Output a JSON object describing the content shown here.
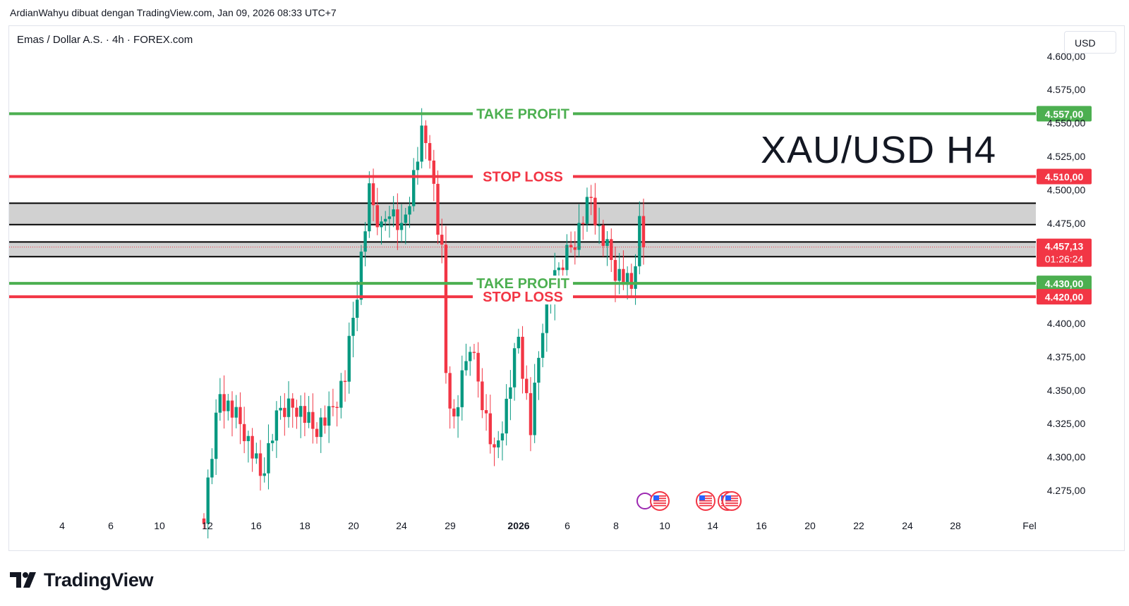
{
  "header": {
    "text": "ArdianWahyu dibuat dengan TradingView.com, Jan 09, 2026 08:33 UTC+7"
  },
  "symbol": {
    "text": "Emas / Dollar A.S. · 4h · FOREX.com"
  },
  "currency_button": {
    "label": "USD"
  },
  "overlay_title": "XAU/USD H4",
  "brand": {
    "name": "TradingView"
  },
  "colors": {
    "up": "#089981",
    "down": "#f23645",
    "take_profit": "#4caf50",
    "stop_loss": "#f23645",
    "zone_fill": "#d1d1d1",
    "zone_border": "#000000",
    "grid": "#e0e3eb",
    "text": "#131722"
  },
  "chart_data": {
    "type": "candlestick",
    "timeframe": "4h",
    "ylim": [
      4255,
      4615
    ],
    "y_ticks": [
      "4.275,00",
      "4.300,00",
      "4.325,00",
      "4.350,00",
      "4.375,00",
      "4.400,00",
      "4.475,00",
      "4.500,00",
      "4.525,00",
      "4.550,00",
      "4.575,00",
      "4.600,00"
    ],
    "x_ticks": [
      "4",
      "6",
      "10",
      "12",
      "16",
      "18",
      "20",
      "24",
      "29",
      "2026",
      "6",
      "8",
      "10",
      "14",
      "16",
      "20",
      "22",
      "24",
      "28",
      "Fel"
    ],
    "levels": [
      {
        "label": "TAKE PROFIT",
        "price": 4557,
        "price_label": "4.557,00",
        "kind": "take_profit"
      },
      {
        "label": "STOP LOSS",
        "price": 4510,
        "price_label": "4.510,00",
        "kind": "stop_loss"
      },
      {
        "label": "TAKE PROFIT",
        "price": 4430,
        "price_label": "4.430,00",
        "kind": "take_profit"
      },
      {
        "label": "STOP LOSS",
        "price": 4420,
        "price_label": "4.420,00",
        "kind": "stop_loss"
      }
    ],
    "zones": [
      {
        "from": 4474,
        "to": 4490
      },
      {
        "from": 4450,
        "to": 4461
      }
    ],
    "last_price": {
      "price": 4457.13,
      "label": "4.457,13",
      "countdown": "01:26:24"
    },
    "anchors": [
      {
        "price": 4260,
        "index": 0
      },
      {
        "price": 4348,
        "index": 4
      },
      {
        "price": 4320,
        "index": 10
      },
      {
        "price": 4285,
        "index": 14
      },
      {
        "price": 4335,
        "index": 19
      },
      {
        "price": 4340,
        "index": 23
      },
      {
        "price": 4322,
        "index": 27
      },
      {
        "price": 4330,
        "index": 31
      },
      {
        "price": 4360,
        "index": 35
      },
      {
        "price": 4425,
        "index": 38
      },
      {
        "price": 4495,
        "index": 41
      },
      {
        "price": 4470,
        "index": 44
      },
      {
        "price": 4490,
        "index": 46
      },
      {
        "price": 4468,
        "index": 49
      },
      {
        "price": 4540,
        "index": 54
      },
      {
        "price": 4530,
        "index": 56
      },
      {
        "price": 4470,
        "index": 58
      },
      {
        "price": 4450,
        "index": 59
      },
      {
        "price": 4362,
        "index": 60
      },
      {
        "price": 4325,
        "index": 62
      },
      {
        "price": 4385,
        "index": 66
      },
      {
        "price": 4345,
        "index": 69
      },
      {
        "price": 4300,
        "index": 72
      },
      {
        "price": 4340,
        "index": 75
      },
      {
        "price": 4390,
        "index": 78
      },
      {
        "price": 4320,
        "index": 81
      },
      {
        "price": 4400,
        "index": 84
      },
      {
        "price": 4440,
        "index": 88
      },
      {
        "price": 4465,
        "index": 92
      },
      {
        "price": 4495,
        "index": 96
      },
      {
        "price": 4470,
        "index": 98
      },
      {
        "price": 4440,
        "index": 102
      },
      {
        "price": 4425,
        "index": 106
      },
      {
        "price": 4475,
        "index": 108
      },
      {
        "price": 4457,
        "index": 109
      }
    ],
    "event_markers": [
      "us-flag",
      "us-flag",
      "us-flag",
      "us-flag"
    ]
  }
}
